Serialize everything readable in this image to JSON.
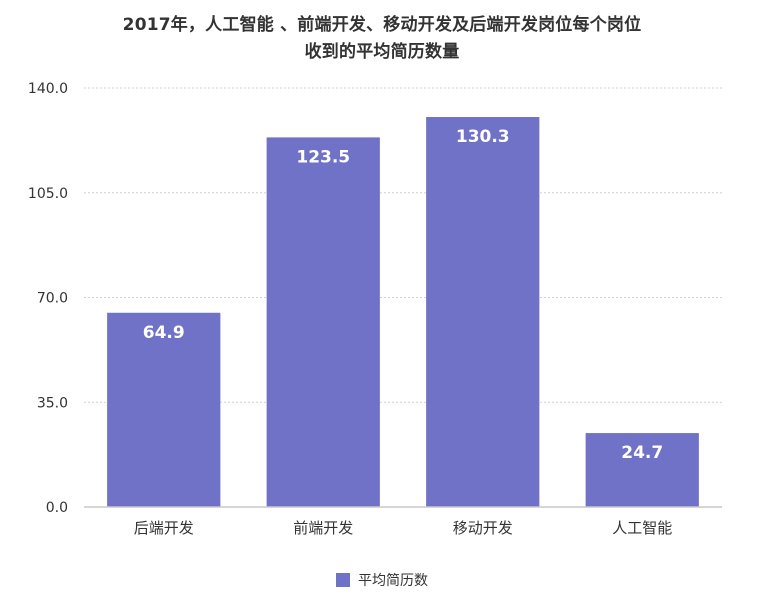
{
  "chart_data": {
    "type": "bar",
    "title_lines": [
      "2017年，人工智能 、前端开发、移动开发及后端开发岗位每个岗位",
      "收到的平均简历数量"
    ],
    "categories": [
      "后端开发",
      "前端开发",
      "移动开发",
      "人工智能"
    ],
    "series": [
      {
        "name": "平均简历数",
        "values": [
          64.9,
          123.5,
          130.3,
          24.7
        ],
        "labels": [
          "64.9",
          "123.5",
          "130.3",
          "24.7"
        ]
      }
    ],
    "ylim": [
      0,
      140
    ],
    "y_ticks": [
      "0.0",
      "35.0",
      "70.0",
      "105.0",
      "140.0"
    ],
    "grid": true,
    "legend_position": "bottom-center",
    "colors": {
      "bar": "#6f72c6",
      "bar_label": "#ffffff",
      "grid": "#d0d0d0",
      "axis": "#c8c8c8",
      "text": "#333333"
    }
  }
}
